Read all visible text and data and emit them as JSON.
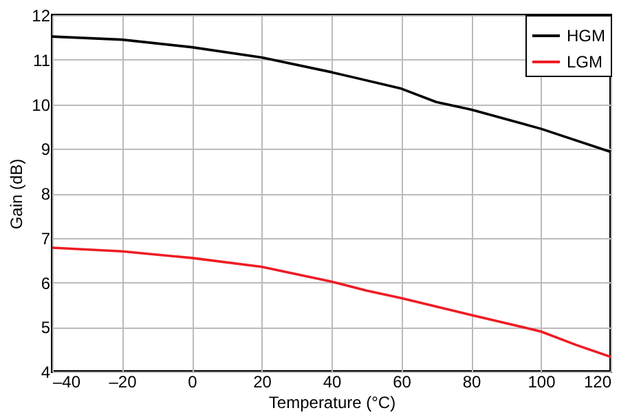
{
  "chart_data": {
    "type": "line",
    "xlabel": "Temperature (°C)",
    "ylabel": "Gain (dB)",
    "xlim": [
      -40,
      120
    ],
    "xticks": [
      {
        "value": -40,
        "label": "–40"
      },
      {
        "value": -20,
        "label": "–20"
      },
      0,
      20,
      40,
      60,
      80,
      100,
      120
    ],
    "ylim": [
      4,
      12
    ],
    "yticks": [
      4,
      5,
      6,
      7,
      8,
      9,
      10,
      11,
      12
    ],
    "grid": true,
    "legend": "top right",
    "marker": "none",
    "line_style": "solid",
    "series": [
      {
        "name": "HGM",
        "color": "#000000",
        "x": [
          -40,
          -20,
          0,
          20,
          40,
          60,
          70,
          80,
          100,
          120
        ],
        "values": [
          11.52,
          11.45,
          11.28,
          11.05,
          10.72,
          10.35,
          10.05,
          9.88,
          9.45,
          8.93
        ]
      },
      {
        "name": "LGM",
        "color": "#ee1c24",
        "x": [
          -40,
          -20,
          0,
          20,
          40,
          50,
          60,
          80,
          100,
          110,
          120
        ],
        "values": [
          6.78,
          6.7,
          6.55,
          6.35,
          6.02,
          5.82,
          5.65,
          5.27,
          4.9,
          4.6,
          4.33
        ]
      }
    ]
  }
}
